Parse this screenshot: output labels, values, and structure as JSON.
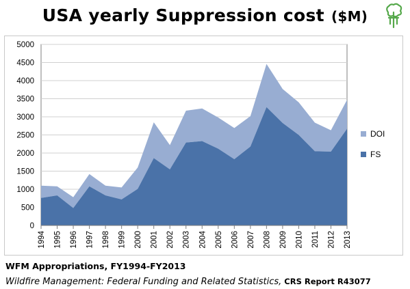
{
  "title": {
    "main": "USA yearly Suppression cost",
    "unit": "($M)"
  },
  "captions": {
    "line1": "WFM Appropriations, FY1994-FY2013",
    "line2_title": "Wildfire Management: Federal Funding and Related Statistics,",
    "line2_report": "CRS Report R43077"
  },
  "colors": {
    "fs": "#4A72A8",
    "doi": "#98ADD2",
    "axis": "#7f7f7f",
    "grid": "#d0d0d0",
    "logo": "#55a84a"
  },
  "icons": {
    "logo": "tree-logo-icon"
  },
  "chart_data": {
    "type": "area",
    "stacked": true,
    "title": "USA yearly Suppression cost ($M)",
    "x": [
      "1994",
      "1995",
      "1996",
      "1997",
      "1998",
      "1999",
      "2000",
      "2001",
      "2002",
      "2003",
      "2004",
      "2005",
      "2006",
      "2007",
      "2008",
      "2009",
      "2010",
      "2011",
      "2012",
      "2013"
    ],
    "series": [
      {
        "name": "FS",
        "color": "#4A72A8",
        "values": [
          760,
          830,
          480,
          1080,
          830,
          720,
          1010,
          1860,
          1550,
          2290,
          2330,
          2120,
          1830,
          2180,
          3270,
          2830,
          2500,
          2050,
          2040,
          2670
        ]
      },
      {
        "name": "DOI",
        "color": "#98ADD2",
        "values": [
          340,
          250,
          300,
          340,
          270,
          330,
          590,
          990,
          670,
          880,
          900,
          860,
          860,
          840,
          1190,
          940,
          900,
          790,
          590,
          800
        ]
      }
    ],
    "ylim": [
      0,
      5000
    ],
    "yticks": [
      0,
      500,
      1000,
      1500,
      2000,
      2500,
      3000,
      3500,
      4000,
      4500,
      5000
    ],
    "grid": "horizontal",
    "legend_position": "right",
    "legend_order": [
      "DOI",
      "FS"
    ]
  }
}
